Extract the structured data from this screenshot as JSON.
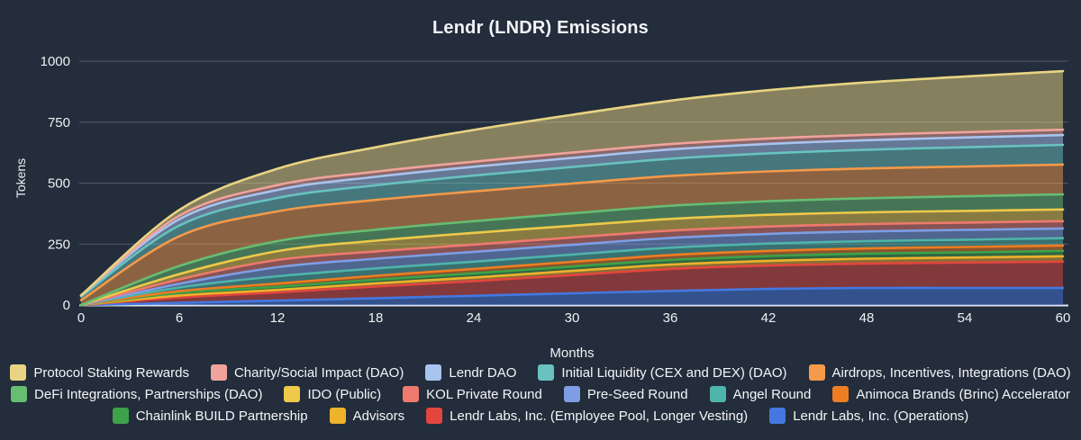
{
  "page": {
    "background_color": "#232d3b",
    "text_color": "#f2f4f7"
  },
  "chart_data": {
    "type": "area",
    "stacked": true,
    "title": "Lendr (LNDR) Emissions",
    "xlabel": "Months",
    "ylabel": "Tokens",
    "x": [
      0,
      6,
      12,
      18,
      24,
      30,
      36,
      42,
      48,
      54,
      60
    ],
    "x_ticks": [
      0,
      6,
      12,
      18,
      24,
      30,
      36,
      42,
      48,
      54,
      60
    ],
    "y_ticks": [
      0,
      250,
      500,
      750,
      1000
    ],
    "xlim": [
      0,
      60
    ],
    "ylim": [
      0,
      1000
    ],
    "grid": "horizontal",
    "legend_position": "bottom",
    "legend_row_counts": [
      5,
      6,
      4
    ],
    "stack_note": "series listed top-of-stack first; rendered stack is bottom-up in reverse order",
    "fill_opacity": 0.5,
    "series": [
      {
        "name": "Protocol Staking Rewards",
        "color": "#e9d483",
        "values": [
          0,
          24,
          67,
          100,
          130,
          155,
          178,
          198,
          215,
          228,
          240
        ]
      },
      {
        "name": "Charity/Social Impact (DAO)",
        "color": "#f0a39b",
        "values": [
          0,
          14,
          20,
          21,
          21,
          22,
          22,
          22,
          22,
          22,
          22
        ]
      },
      {
        "name": "Lendr DAO",
        "color": "#a8c4ef",
        "values": [
          5,
          26,
          33,
          35,
          36,
          37,
          38,
          39,
          39,
          40,
          40
        ]
      },
      {
        "name": "Initial Liquidity (CEX and DEX) (DAO)",
        "color": "#68c2bf",
        "values": [
          15,
          44,
          55,
          60,
          65,
          68,
          71,
          74,
          77,
          79,
          81
        ]
      },
      {
        "name": "Airdrops, Incentives, Integrations (DAO)",
        "color": "#f49a4a",
        "values": [
          20,
          122,
          122,
          122,
          122,
          122,
          122,
          122,
          122,
          122,
          122
        ]
      },
      {
        "name": "DeFi Integrations, Partnerships (DAO)",
        "color": "#67bd72",
        "values": [
          0,
          33,
          41,
          45,
          48,
          51,
          54,
          56,
          58,
          60,
          62
        ]
      },
      {
        "name": "IDO (Public)",
        "color": "#eec94a",
        "values": [
          0,
          22,
          36,
          44,
          48,
          48,
          48,
          48,
          48,
          48,
          48
        ]
      },
      {
        "name": "KOL Private Round",
        "color": "#ee7a6e",
        "values": [
          0,
          18,
          30,
          30,
          30,
          30,
          30,
          30,
          30,
          30,
          30
        ]
      },
      {
        "name": "Pre-Seed Round",
        "color": "#7e9ee4",
        "values": [
          0,
          15,
          37,
          40,
          40,
          40,
          40,
          40,
          40,
          40,
          40
        ]
      },
      {
        "name": "Angel Round",
        "color": "#4fb4aa",
        "values": [
          0,
          15,
          30,
          30,
          30,
          30,
          30,
          30,
          30,
          30,
          30
        ]
      },
      {
        "name": "Animoca Brands (Brinc) Accelerator",
        "color": "#ee7d21",
        "values": [
          0,
          7,
          13,
          16,
          18,
          19,
          20,
          21,
          21,
          22,
          22
        ]
      },
      {
        "name": "Chainlink BUILD Partnership",
        "color": "#3da24a",
        "values": [
          0,
          11,
          13,
          15,
          17,
          18,
          19,
          20,
          21,
          21,
          22
        ]
      },
      {
        "name": "Advisors",
        "color": "#eeb22b",
        "values": [
          0,
          8,
          10,
          13,
          15,
          17,
          18,
          19,
          20,
          21,
          22
        ]
      },
      {
        "name": "Lendr Labs, Inc. (Employee Pool, Longer Vesting)",
        "color": "#e2463e",
        "values": [
          0,
          22,
          34,
          48,
          60,
          75,
          90,
          96,
          100,
          104,
          108
        ]
      },
      {
        "name": "Lendr Labs, Inc. (Operations)",
        "color": "#4478e0",
        "values": [
          0,
          9,
          18,
          28,
          38,
          48,
          58,
          66,
          70,
          70,
          70
        ]
      }
    ]
  }
}
